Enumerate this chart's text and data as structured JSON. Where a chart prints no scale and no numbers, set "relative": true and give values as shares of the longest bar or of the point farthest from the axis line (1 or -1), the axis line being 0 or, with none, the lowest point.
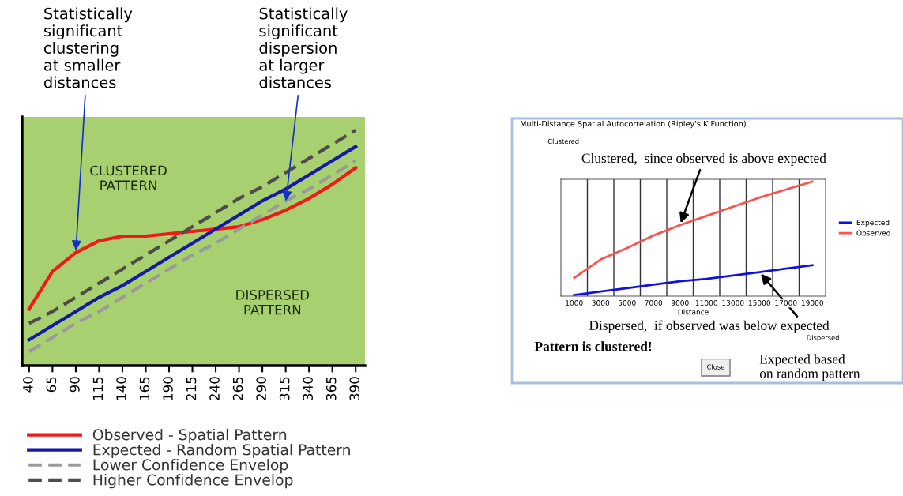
{
  "chart_data": [
    {
      "type": "line",
      "relative": true,
      "categories": [
        "40",
        "65",
        "90",
        "115",
        "140",
        "165",
        "190",
        "215",
        "240",
        "265",
        "290",
        "315",
        "340",
        "365",
        "390"
      ],
      "series": [
        {
          "name": "Observed - Spatial Pattern",
          "color": "#f01818",
          "line_style": "solid",
          "values": [
            0.24,
            0.4,
            0.48,
            0.53,
            0.55,
            0.55,
            0.56,
            0.57,
            0.58,
            0.59,
            0.62,
            0.66,
            0.71,
            0.77,
            0.84
          ]
        },
        {
          "name": "Expected - Random Spatial Pattern",
          "color": "#1818a8",
          "line_style": "solid",
          "values": [
            0.11,
            0.17,
            0.23,
            0.29,
            0.34,
            0.4,
            0.46,
            0.52,
            0.58,
            0.64,
            0.7,
            0.75,
            0.81,
            0.87,
            0.93
          ]
        },
        {
          "name": "Lower Confidence Envelop",
          "color": "#9a9a9a",
          "line_style": "dashed",
          "values": [
            0.06,
            0.12,
            0.18,
            0.23,
            0.29,
            0.35,
            0.41,
            0.47,
            0.52,
            0.58,
            0.64,
            0.7,
            0.75,
            0.81,
            0.87
          ]
        },
        {
          "name": "Higher Confidence Envelop",
          "color": "#4c4c4c",
          "line_style": "dashed",
          "values": [
            0.18,
            0.23,
            0.29,
            0.35,
            0.41,
            0.47,
            0.53,
            0.59,
            0.65,
            0.71,
            0.76,
            0.82,
            0.88,
            0.94,
            1
          ]
        }
      ],
      "annotations": [
        {
          "text": "Statistically\nsignificant\nclustering\nat smaller\ndistances",
          "x": "90",
          "y": 0.48
        },
        {
          "text": "Statistically\nsignificant\ndispersion\nat larger\ndistances",
          "x": "315",
          "y": 0.69
        },
        "CLUSTERED\nPATTERN",
        "DISPERSED\nPATTERN"
      ],
      "grid": false,
      "legend": "bottom",
      "tick_labels": "x"
    },
    {
      "type": "line",
      "relative": true,
      "title": "Multi-Distance Spatial Autocorrelation (Ripley's K Function)",
      "xlabel": "Distance",
      "categories": [
        "1000",
        "3000",
        "5000",
        "7000",
        "9000",
        "11000",
        "13000",
        "15000",
        "17000",
        "19000"
      ],
      "series": [
        {
          "name": "Expected",
          "color": "#1010e0",
          "line_style": "solid",
          "values": [
            0.01,
            0.04,
            0.07,
            0.1,
            0.13,
            0.15,
            0.18,
            0.21,
            0.24,
            0.27
          ]
        },
        {
          "name": "Observed",
          "color": "#ff5050",
          "line_style": "solid",
          "values": [
            0.16,
            0.32,
            0.42,
            0.53,
            0.62,
            0.7,
            0.78,
            0.86,
            0.93,
            1
          ]
        }
      ],
      "annotations": [
        "Clustered",
        {
          "text": "Clustered,  since observed is above expected",
          "x": "9000",
          "y": 0.62
        },
        {
          "text": "Dispersed,  if observed was below expected",
          "x": "15000",
          "y": 0.21
        },
        "Dispersed",
        "Pattern is clustered!",
        "Close",
        "Expected based\non random pattern"
      ],
      "grid": true,
      "legend": "right",
      "tick_labels": "x"
    }
  ]
}
